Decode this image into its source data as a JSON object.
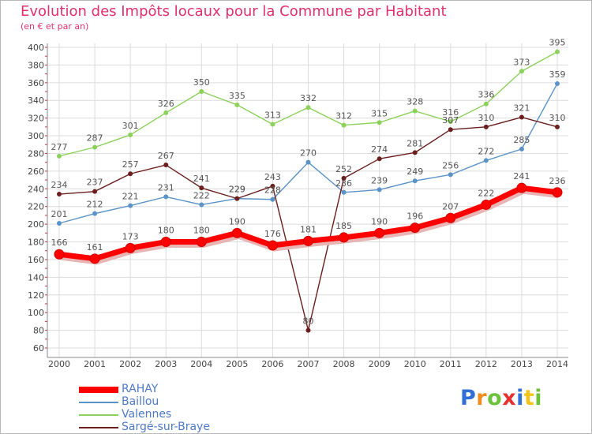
{
  "title": "Evolution des Impôts locaux pour la Commune par Habitant",
  "subtitle": "(en € et par an)",
  "brand": "Proxiti",
  "chart_data": {
    "type": "line",
    "title": "Evolution des Impôts locaux pour la Commune par Habitant",
    "ylabel": "(en € et par an)",
    "xlabel": "",
    "x": [
      "2000",
      "2001",
      "2002",
      "2003",
      "2004",
      "2005",
      "2006",
      "2007",
      "2008",
      "2009",
      "2010",
      "2011",
      "2012",
      "2013",
      "2014"
    ],
    "ylim": [
      60,
      400
    ],
    "yticks": [
      60,
      80,
      100,
      120,
      140,
      160,
      180,
      200,
      220,
      240,
      260,
      280,
      300,
      320,
      340,
      360,
      380,
      400
    ],
    "grid": true,
    "legend_position": "bottom-left",
    "series": [
      {
        "name": "RAHAY",
        "color": "#ff0000",
        "values": [
          166,
          161,
          173,
          180,
          180,
          190,
          176,
          181,
          185,
          190,
          196,
          207,
          222,
          241,
          236
        ]
      },
      {
        "name": "Baillou",
        "color": "#5b93c8",
        "values": [
          201,
          212,
          221,
          231,
          222,
          229,
          228,
          270,
          236,
          239,
          249,
          256,
          272,
          285,
          359
        ]
      },
      {
        "name": "Valennes",
        "color": "#8cd15a",
        "values": [
          277,
          287,
          301,
          326,
          350,
          335,
          313,
          332,
          312,
          315,
          328,
          316,
          336,
          373,
          395
        ]
      },
      {
        "name": "Sargé-sur-Braye",
        "color": "#6b1e1e",
        "values": [
          234,
          237,
          257,
          267,
          241,
          229,
          243,
          80,
          252,
          274,
          281,
          307,
          310,
          321,
          310
        ]
      }
    ]
  }
}
